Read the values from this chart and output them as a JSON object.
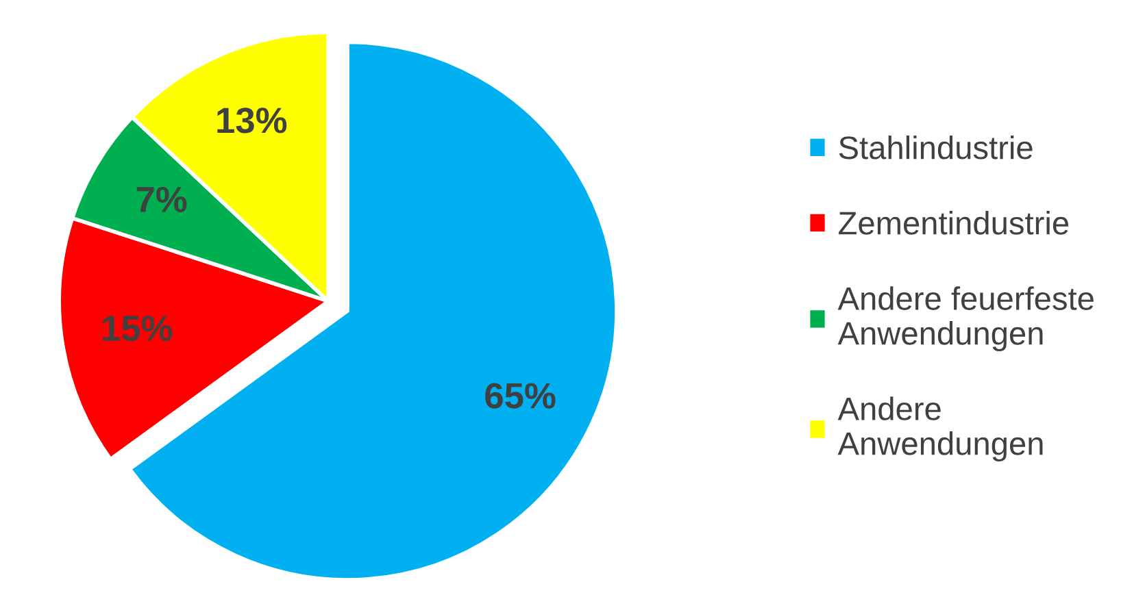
{
  "chart_data": {
    "type": "pie",
    "categories": [
      "Stahlindustrie",
      "Zementindustrie",
      "Andere feuerfeste Anwendungen",
      "Andere Anwendungen"
    ],
    "values": [
      65,
      15,
      7,
      13
    ],
    "colors": [
      "#00b0f0",
      "#ff0000",
      "#00b050",
      "#ffff00"
    ],
    "value_labels": [
      "65%",
      "15%",
      "7%",
      "13%"
    ],
    "legend": "right"
  }
}
